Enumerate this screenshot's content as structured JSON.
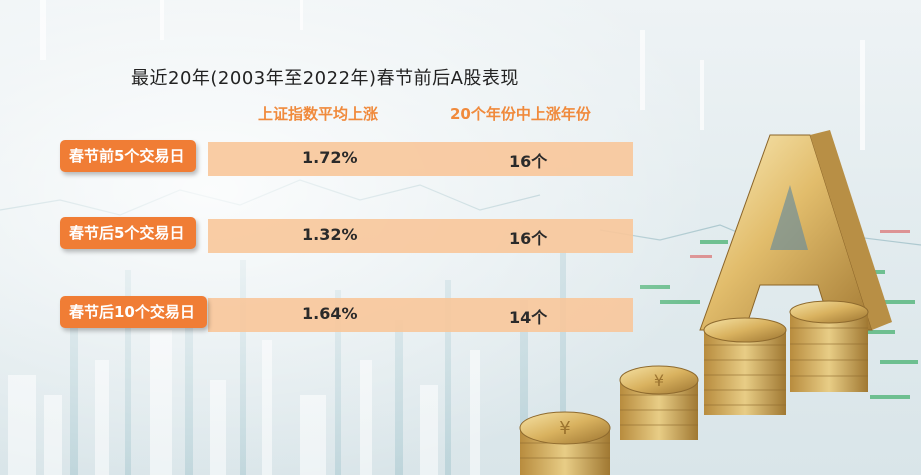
{
  "title": "最近20年(2003年至2022年)春节前后A股表现",
  "columns": {
    "col1": "上证指数平均上涨",
    "col2": "20个年份中上涨年份"
  },
  "rows": [
    {
      "label": "春节前5个交易日",
      "avg": "1.72%",
      "years": "16个"
    },
    {
      "label": "春节后5个交易日",
      "avg": "1.32%",
      "years": "16个"
    },
    {
      "label": "春节后10个交易日",
      "avg": "1.64%",
      "years": "14个"
    }
  ],
  "colors": {
    "accent": "#f07d35",
    "band": "#f8c79a",
    "header": "#f08a3c"
  },
  "icons": [
    "gold-letter-a-icon",
    "coin-stack-icon"
  ]
}
